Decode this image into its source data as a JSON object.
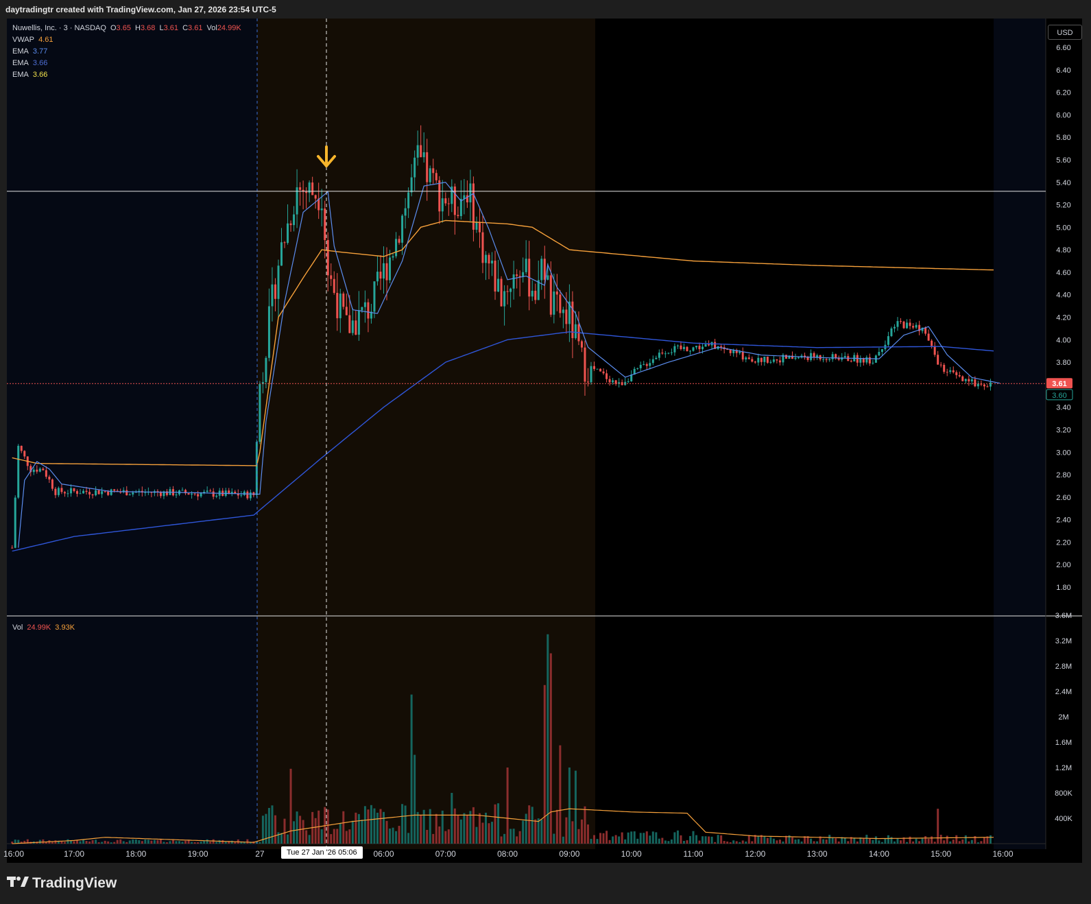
{
  "header": {
    "credit": "daytradingtr created with TradingView.com, Jan 27, 2026 23:54 UTC-5"
  },
  "legend": {
    "symbol": "Nuwellis, Inc. · 3 · NASDAQ",
    "o_label": "O",
    "o_value": "3.65",
    "h_label": "H",
    "h_value": "3.68",
    "l_label": "L",
    "l_value": "3.61",
    "c_label": "C",
    "c_value": "3.61",
    "vol_label": "Vol",
    "vol_value": "24.99K",
    "indicators": [
      {
        "name": "VWAP",
        "value": "4.61",
        "color": "#f7a13b"
      },
      {
        "name": "EMA",
        "value": "3.77",
        "color": "#5b8def"
      },
      {
        "name": "EMA",
        "value": "3.66",
        "color": "#4f6fd6"
      },
      {
        "name": "EMA",
        "value": "3.66",
        "color": "#f2e14c"
      }
    ]
  },
  "volume_legend": {
    "label": "Vol",
    "value1": "24.99K",
    "value2": "3.93K"
  },
  "currency_button": "USD",
  "crosshair_time_label": "Tue 27 Jan '26   05:06",
  "price_badges": {
    "last": "3.61",
    "ema": "3.60"
  },
  "brand": "TradingView",
  "colors": {
    "up": "#26a69a",
    "down": "#ef5350",
    "vwap": "#f7a13b",
    "ema_fast": "#5b8def",
    "ema_slow": "#2f56d9",
    "premarket_bg": "#140d05",
    "afterhours_bg": "#050914",
    "arrow": "#f7b52c"
  },
  "chart_data": {
    "type": "candlestick",
    "symbol": "Nuwellis, Inc.",
    "exchange": "NASDAQ",
    "interval": "3",
    "price_axis_ticks": [
      "6.60",
      "6.40",
      "6.20",
      "6.00",
      "5.80",
      "5.60",
      "5.40",
      "5.20",
      "5.00",
      "4.80",
      "4.60",
      "4.40",
      "4.20",
      "4.00",
      "3.80",
      "3.40",
      "3.20",
      "3.00",
      "2.80",
      "2.60",
      "2.40",
      "2.20",
      "2.00",
      "1.80"
    ],
    "volume_axis_ticks": [
      "3.6M",
      "3.2M",
      "2.8M",
      "2.4M",
      "2M",
      "1.6M",
      "1.2M",
      "800K",
      "400K"
    ],
    "time_axis_ticks": [
      "16:00",
      "17:00",
      "18:00",
      "19:00",
      "27",
      "06:00",
      "07:00",
      "08:00",
      "09:00",
      "10:00",
      "11:00",
      "12:00",
      "13:00",
      "14:00",
      "15:00",
      "16:00"
    ],
    "ylim": [
      1.7,
      6.72
    ],
    "volume_ylim": [
      0,
      3.6
    ],
    "horizontal_line": 5.32,
    "price_anchors": [
      {
        "t": -1.0,
        "p": 2.15
      },
      {
        "t": -0.9,
        "p": 3.05
      },
      {
        "t": -0.7,
        "p": 2.85
      },
      {
        "t": -0.5,
        "p": 2.85
      },
      {
        "t": -0.3,
        "p": 2.65
      },
      {
        "t": 0.5,
        "p": 2.65
      },
      {
        "t": 1.5,
        "p": 2.64
      },
      {
        "t": 2.9,
        "p": 2.62
      },
      {
        "t": 3.0,
        "p": 3.6
      },
      {
        "t": 3.3,
        "p": 4.7
      },
      {
        "t": 3.6,
        "p": 5.35
      },
      {
        "t": 4.0,
        "p": 5.3
      },
      {
        "t": 4.1,
        "p": 4.6
      },
      {
        "t": 4.4,
        "p": 4.1
      },
      {
        "t": 4.8,
        "p": 4.3
      },
      {
        "t": 5.2,
        "p": 4.9
      },
      {
        "t": 5.55,
        "p": 5.6
      },
      {
        "t": 5.9,
        "p": 5.3
      },
      {
        "t": 6.15,
        "p": 5.2
      },
      {
        "t": 6.35,
        "p": 5.35
      },
      {
        "t": 6.6,
        "p": 4.8
      },
      {
        "t": 6.9,
        "p": 4.4
      },
      {
        "t": 7.2,
        "p": 4.65
      },
      {
        "t": 7.5,
        "p": 4.4
      },
      {
        "t": 7.55,
        "p": 4.8
      },
      {
        "t": 7.7,
        "p": 4.3
      },
      {
        "t": 8.0,
        "p": 4.2
      },
      {
        "t": 8.2,
        "p": 3.8
      },
      {
        "t": 8.8,
        "p": 3.6
      },
      {
        "t": 9.5,
        "p": 3.9
      },
      {
        "t": 10.3,
        "p": 3.95
      },
      {
        "t": 11.0,
        "p": 3.82
      },
      {
        "t": 12.0,
        "p": 3.85
      },
      {
        "t": 12.9,
        "p": 3.82
      },
      {
        "t": 13.3,
        "p": 4.15
      },
      {
        "t": 13.7,
        "p": 4.1
      },
      {
        "t": 14.0,
        "p": 3.75
      },
      {
        "t": 14.4,
        "p": 3.62
      },
      {
        "t": 14.85,
        "p": 3.61
      }
    ],
    "vwap": [
      {
        "t": -1.0,
        "p": 2.95
      },
      {
        "t": -0.6,
        "p": 2.9
      },
      {
        "t": 2.95,
        "p": 2.88
      },
      {
        "t": 3.0,
        "p": 3.0
      },
      {
        "t": 3.3,
        "p": 4.2
      },
      {
        "t": 3.7,
        "p": 4.55
      },
      {
        "t": 4.0,
        "p": 4.8
      },
      {
        "t": 4.3,
        "p": 4.78
      },
      {
        "t": 5.0,
        "p": 4.74
      },
      {
        "t": 5.3,
        "p": 4.8
      },
      {
        "t": 5.6,
        "p": 5.0
      },
      {
        "t": 6.0,
        "p": 5.06
      },
      {
        "t": 7.0,
        "p": 5.03
      },
      {
        "t": 7.4,
        "p": 5.0
      },
      {
        "t": 8.0,
        "p": 4.8
      },
      {
        "t": 10.0,
        "p": 4.7
      },
      {
        "t": 12.0,
        "p": 4.66
      },
      {
        "t": 14.85,
        "p": 4.62
      }
    ],
    "ema_slow": [
      {
        "t": -1.0,
        "p": 2.12
      },
      {
        "t": 0.0,
        "p": 2.25
      },
      {
        "t": 2.9,
        "p": 2.44
      },
      {
        "t": 4.0,
        "p": 2.95
      },
      {
        "t": 5.0,
        "p": 3.4
      },
      {
        "t": 6.0,
        "p": 3.8
      },
      {
        "t": 7.0,
        "p": 4.0
      },
      {
        "t": 8.0,
        "p": 4.07
      },
      {
        "t": 10.0,
        "p": 3.97
      },
      {
        "t": 12.0,
        "p": 3.93
      },
      {
        "t": 14.0,
        "p": 3.94
      },
      {
        "t": 14.85,
        "p": 3.9
      }
    ],
    "volume_spikes_m": [
      {
        "t": 3.5,
        "v": 1.18
      },
      {
        "t": 5.0,
        "v": 0.5
      },
      {
        "t": 5.45,
        "v": 2.35
      },
      {
        "t": 5.5,
        "v": 1.4
      },
      {
        "t": 6.1,
        "v": 0.8
      },
      {
        "t": 7.0,
        "v": 1.2
      },
      {
        "t": 7.6,
        "v": 2.5
      },
      {
        "t": 7.65,
        "v": 3.3
      },
      {
        "t": 7.7,
        "v": 3.0
      },
      {
        "t": 7.85,
        "v": 1.55
      },
      {
        "t": 8.0,
        "v": 1.2
      },
      {
        "t": 8.1,
        "v": 1.15
      },
      {
        "t": 13.95,
        "v": 0.55
      }
    ],
    "volume_ma_m": [
      {
        "t": -1.0,
        "v": 0.0
      },
      {
        "t": 0.0,
        "v": 0.05
      },
      {
        "t": 0.5,
        "v": 0.1
      },
      {
        "t": 2.9,
        "v": 0.02
      },
      {
        "t": 3.5,
        "v": 0.2
      },
      {
        "t": 4.5,
        "v": 0.35
      },
      {
        "t": 5.5,
        "v": 0.45
      },
      {
        "t": 6.5,
        "v": 0.45
      },
      {
        "t": 7.5,
        "v": 0.35
      },
      {
        "t": 7.7,
        "v": 0.5
      },
      {
        "t": 8.0,
        "v": 0.55
      },
      {
        "t": 9.0,
        "v": 0.5
      },
      {
        "t": 9.9,
        "v": 0.48
      },
      {
        "t": 10.2,
        "v": 0.18
      },
      {
        "t": 11.0,
        "v": 0.12
      },
      {
        "t": 13.0,
        "v": 0.08
      },
      {
        "t": 14.85,
        "v": 0.1
      }
    ]
  }
}
